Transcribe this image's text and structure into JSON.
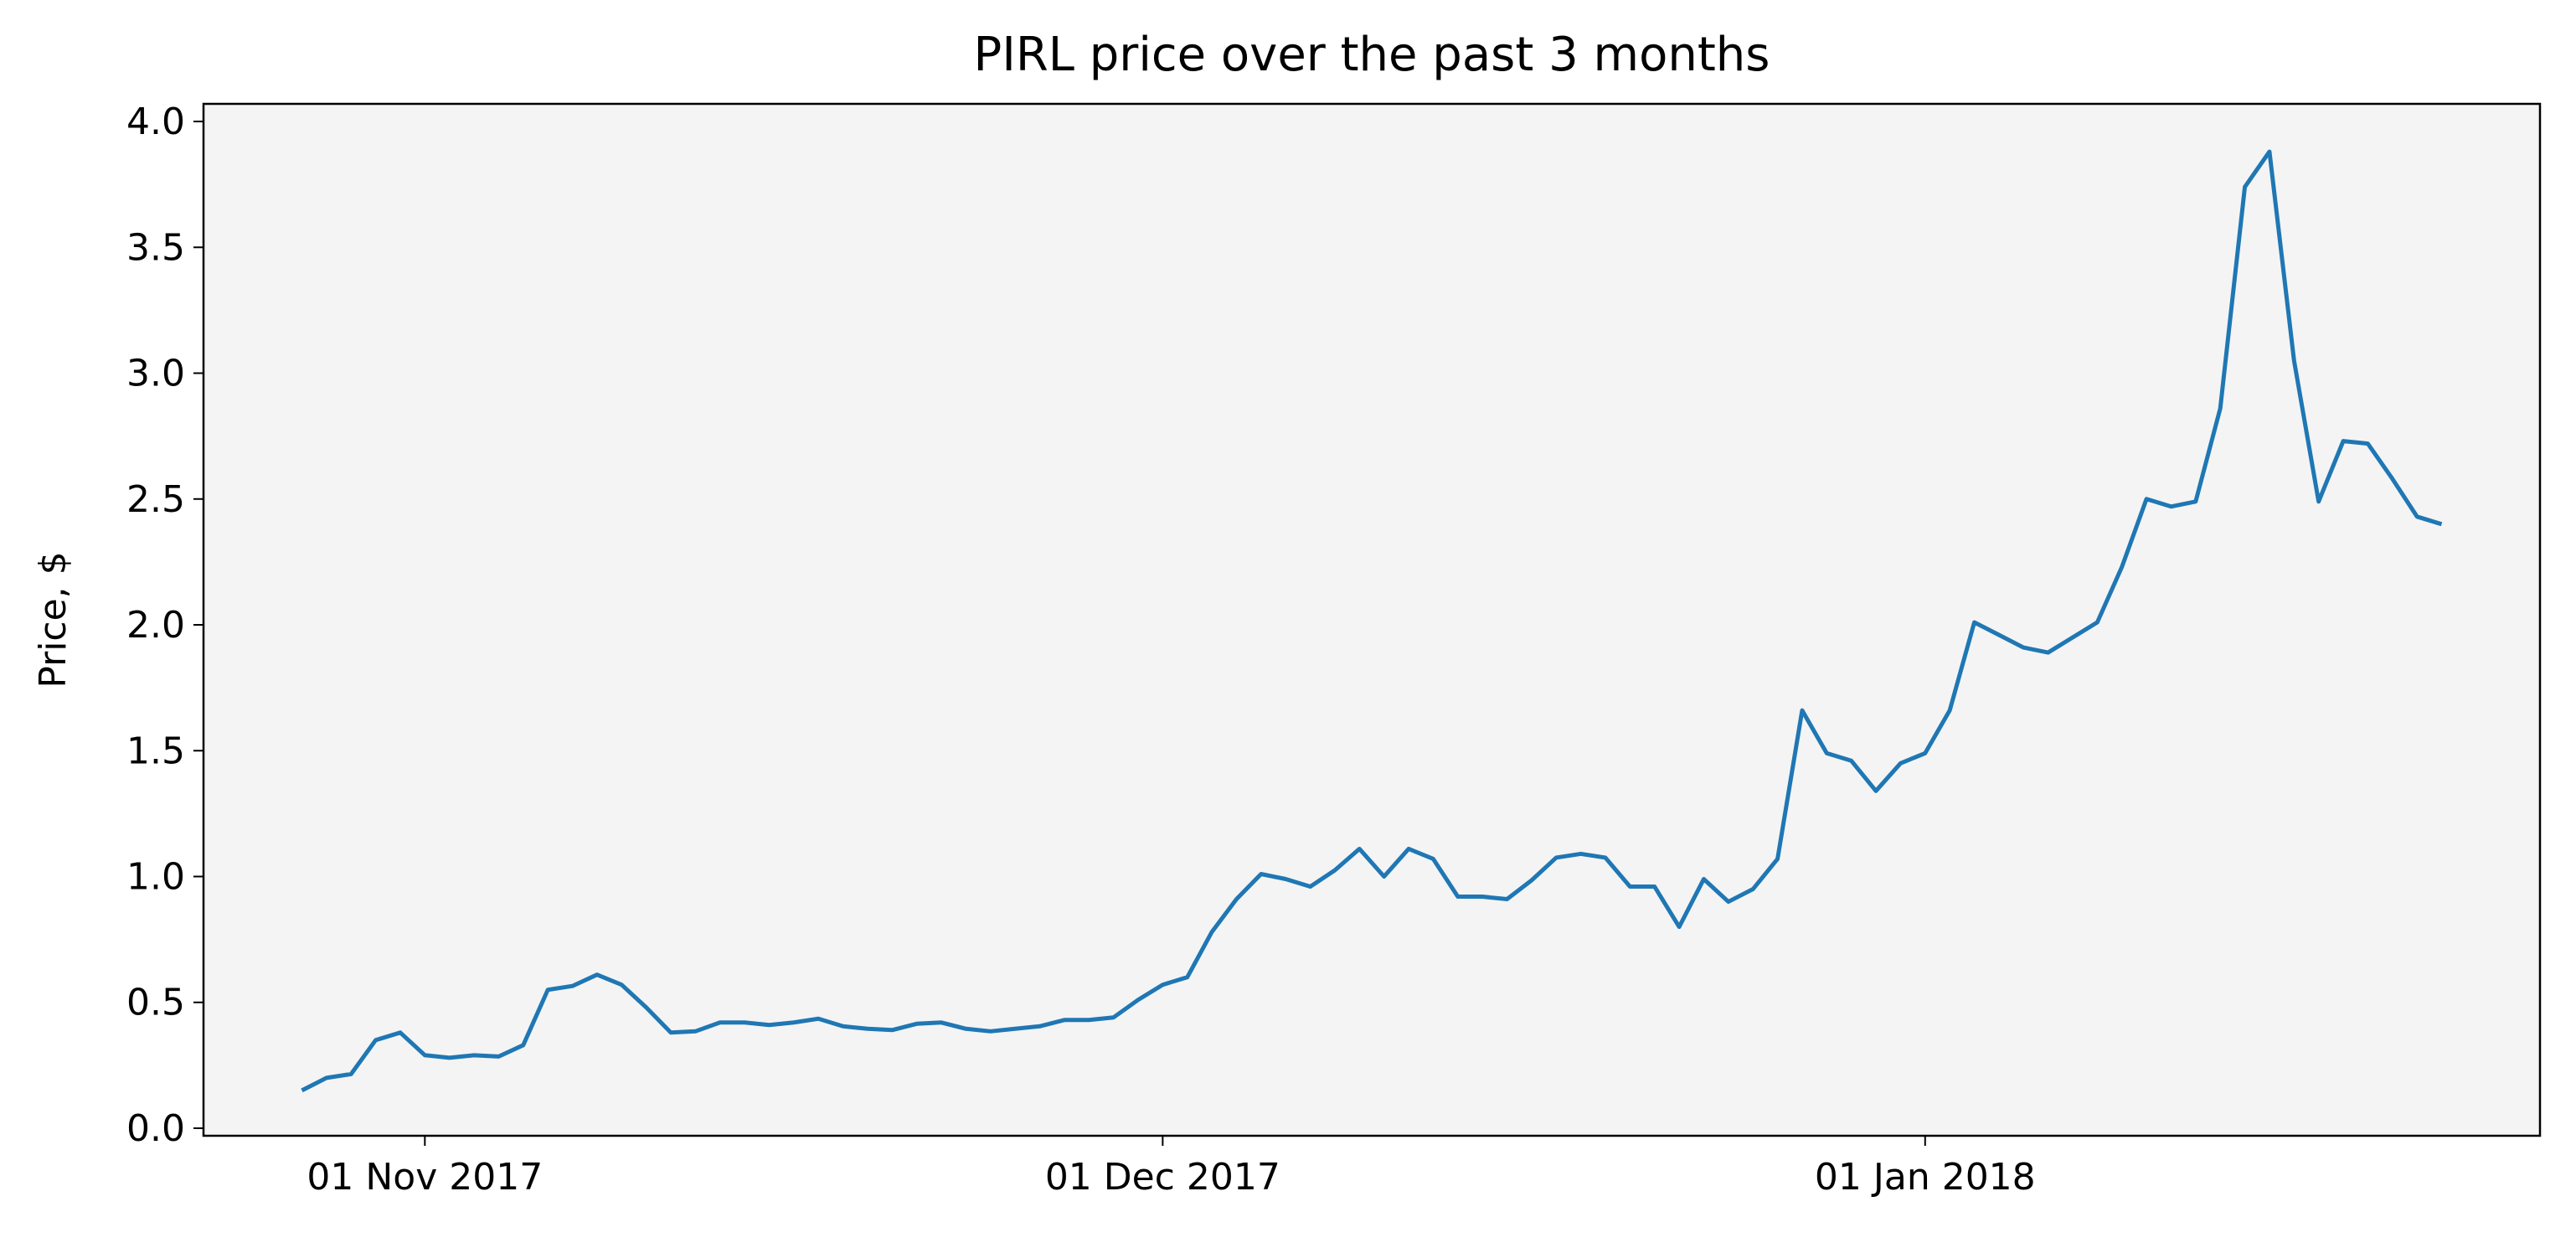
{
  "chart_data": {
    "type": "line",
    "title": "PIRL price over the past 3 months",
    "y_label": "Price, $",
    "x": [
      "2017-10-27",
      "2017-10-28",
      "2017-10-29",
      "2017-10-30",
      "2017-10-31",
      "2017-11-01",
      "2017-11-02",
      "2017-11-03",
      "2017-11-04",
      "2017-11-05",
      "2017-11-06",
      "2017-11-07",
      "2017-11-08",
      "2017-11-09",
      "2017-11-10",
      "2017-11-11",
      "2017-11-12",
      "2017-11-13",
      "2017-11-14",
      "2017-11-15",
      "2017-11-16",
      "2017-11-17",
      "2017-11-18",
      "2017-11-19",
      "2017-11-20",
      "2017-11-21",
      "2017-11-22",
      "2017-11-23",
      "2017-11-24",
      "2017-11-25",
      "2017-11-26",
      "2017-11-27",
      "2017-11-28",
      "2017-11-29",
      "2017-11-30",
      "2017-12-01",
      "2017-12-02",
      "2017-12-03",
      "2017-12-04",
      "2017-12-05",
      "2017-12-06",
      "2017-12-07",
      "2017-12-08",
      "2017-12-09",
      "2017-12-10",
      "2017-12-11",
      "2017-12-12",
      "2017-12-13",
      "2017-12-14",
      "2017-12-15",
      "2017-12-16",
      "2017-12-17",
      "2017-12-18",
      "2017-12-19",
      "2017-12-20",
      "2017-12-21",
      "2017-12-22",
      "2017-12-23",
      "2017-12-24",
      "2017-12-25",
      "2017-12-26",
      "2017-12-27",
      "2017-12-28",
      "2017-12-29",
      "2017-12-30",
      "2017-12-31",
      "2018-01-01",
      "2018-01-02",
      "2018-01-03",
      "2018-01-04",
      "2018-01-05",
      "2018-01-06",
      "2018-01-07",
      "2018-01-08",
      "2018-01-09",
      "2018-01-10",
      "2018-01-11",
      "2018-01-12",
      "2018-01-13",
      "2018-01-14",
      "2018-01-15",
      "2018-01-16",
      "2018-01-17",
      "2018-01-18",
      "2018-01-19",
      "2018-01-20",
      "2018-01-21",
      "2018-01-22"
    ],
    "values": [
      0.15,
      0.2,
      0.215,
      0.35,
      0.38,
      0.29,
      0.28,
      0.29,
      0.285,
      0.33,
      0.55,
      0.565,
      0.61,
      0.57,
      0.48,
      0.38,
      0.385,
      0.42,
      0.42,
      0.41,
      0.42,
      0.435,
      0.405,
      0.395,
      0.39,
      0.415,
      0.42,
      0.395,
      0.385,
      0.395,
      0.405,
      0.43,
      0.43,
      0.44,
      0.51,
      0.57,
      0.6,
      0.78,
      0.91,
      1.01,
      0.99,
      0.96,
      1.025,
      1.11,
      1.0,
      1.11,
      1.07,
      0.92,
      0.92,
      0.91,
      0.985,
      1.075,
      1.09,
      1.075,
      0.96,
      0.96,
      0.8,
      0.99,
      0.9,
      0.95,
      1.07,
      1.66,
      1.49,
      1.46,
      1.34,
      1.45,
      1.49,
      1.66,
      2.01,
      1.96,
      1.91,
      1.89,
      1.95,
      2.01,
      2.23,
      2.5,
      2.47,
      2.49,
      2.86,
      3.74,
      3.88,
      3.05,
      2.49,
      2.73,
      2.72,
      2.58,
      2.43,
      2.4
    ],
    "color": "#1f77b4",
    "xlim": [
      "2017-10-23",
      "2018-01-26"
    ],
    "xticks": [
      {
        "value": "2017-11-01",
        "label": "01 Nov 2017"
      },
      {
        "value": "2017-12-01",
        "label": "01 Dec 2017"
      },
      {
        "value": "2018-01-01",
        "label": "01 Jan 2018"
      }
    ],
    "ylim": [
      -0.03,
      4.07
    ],
    "yticks": [
      {
        "value": 0,
        "label": "0.0"
      },
      0.5,
      {
        "value": 1,
        "label": "1.0"
      },
      1.5,
      {
        "value": 2,
        "label": "2.0"
      },
      2.5,
      {
        "value": 3,
        "label": "3.0"
      },
      3.5,
      {
        "value": 4,
        "label": "4.0"
      }
    ],
    "background": "#f4f4f4"
  }
}
